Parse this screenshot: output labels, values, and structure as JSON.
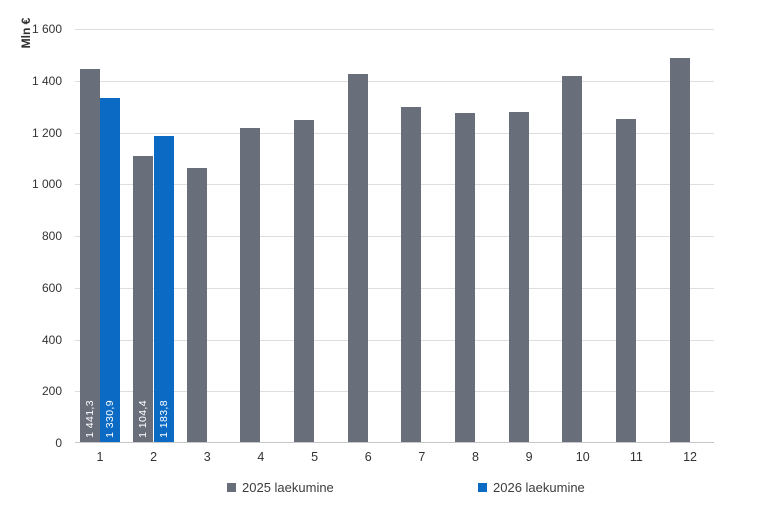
{
  "chart_data": {
    "type": "bar",
    "title": "",
    "ylabel": "Mln €",
    "xlabel": "",
    "x_categories": [
      "1",
      "2",
      "3",
      "4",
      "5",
      "6",
      "7",
      "8",
      "9",
      "10",
      "11",
      "12"
    ],
    "ylim": [
      0,
      1600
    ],
    "ytick_step": 200,
    "ytick_labels_top_to_bottom": [
      "1 600",
      "1 400",
      "1 200",
      "1 000",
      "800",
      "600",
      "400",
      "200",
      "0"
    ],
    "grid": "horizontal",
    "legend_position": "bottom",
    "series": [
      {
        "name": "2025 laekumine",
        "color": "#696e7b",
        "values": [
          1441.3,
          1104.4,
          1060,
          1215,
          1245,
          1422,
          1295,
          1272,
          1275,
          1415,
          1250,
          1485
        ],
        "value_labels": [
          "1 441,3",
          "1 104,4",
          null,
          null,
          null,
          null,
          null,
          null,
          null,
          null,
          null,
          null
        ]
      },
      {
        "name": "2026 laekumine",
        "color": "#0b6ac4",
        "values": [
          1330.9,
          1183.8,
          null,
          null,
          null,
          null,
          null,
          null,
          null,
          null,
          null,
          null
        ],
        "value_labels": [
          "1 330,9",
          "1 183,8",
          null,
          null,
          null,
          null,
          null,
          null,
          null,
          null,
          null,
          null
        ]
      }
    ]
  }
}
